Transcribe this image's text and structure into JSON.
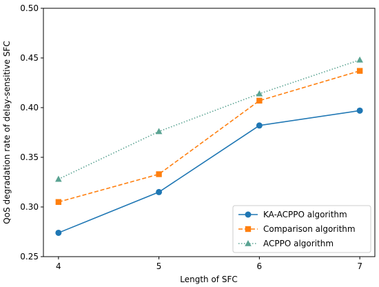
{
  "chart_data": {
    "type": "line",
    "title": "",
    "xlabel": "Length of SFC",
    "ylabel": "QoS degradation rate of delay-sensitive SFC",
    "x": [
      4,
      5,
      6,
      7
    ],
    "x_ticks": [
      "4",
      "5",
      "6",
      "7"
    ],
    "xlim": [
      3.85,
      7.15
    ],
    "ylim": [
      0.25,
      0.5
    ],
    "y_ticks": [
      0.25,
      0.3,
      0.35,
      0.4,
      0.45,
      0.5
    ],
    "y_tick_labels": [
      "0.25",
      "0.30",
      "0.35",
      "0.40",
      "0.45",
      "0.50"
    ],
    "grid": false,
    "legend_position": "bottom-right",
    "series": [
      {
        "name": "KA-ACPPO algorithm",
        "values": [
          0.274,
          0.315,
          0.382,
          0.397
        ],
        "color": "#1f77b4",
        "line_style": "solid",
        "marker": "circle"
      },
      {
        "name": "Comparison algorithm",
        "values": [
          0.305,
          0.333,
          0.407,
          0.437
        ],
        "color": "#ff7f0e",
        "line_style": "dashed",
        "marker": "square"
      },
      {
        "name": "ACPPO algorithm",
        "values": [
          0.328,
          0.376,
          0.414,
          0.448
        ],
        "color": "#5aa392",
        "line_style": "dotted",
        "marker": "triangle"
      }
    ]
  }
}
